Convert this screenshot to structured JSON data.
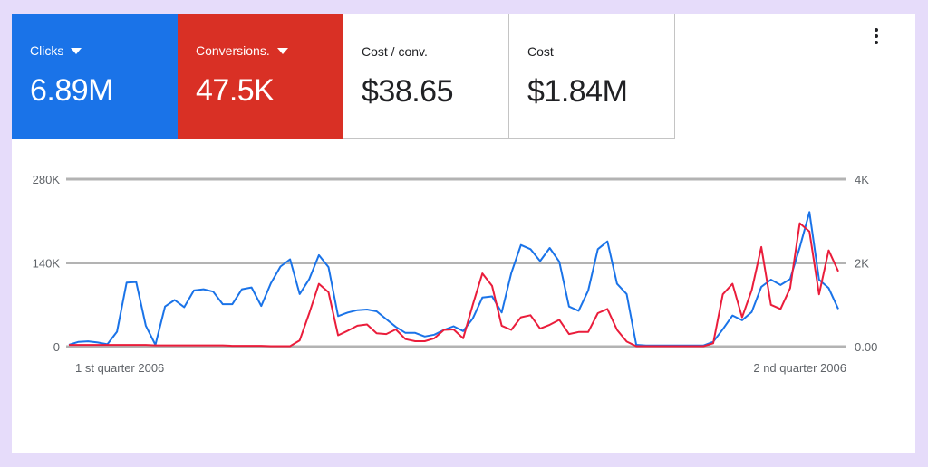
{
  "metrics": [
    {
      "label": "Clicks",
      "value": "6.89M",
      "dropdown": true,
      "color": "#1a73e8"
    },
    {
      "label": "Conversions.",
      "value": "47.5K",
      "dropdown": true,
      "color": "#d93025"
    },
    {
      "label": "Cost / conv.",
      "value": "$38.65",
      "dropdown": false
    },
    {
      "label": "Cost",
      "value": "$1.84M",
      "dropdown": false
    }
  ],
  "menu_icon": "more-vert-icon",
  "chart_data": {
    "type": "line",
    "x_labels": [
      "1 st quarter 2006",
      "2 nd quarter 2006"
    ],
    "y_left": {
      "ticks": [
        "280K",
        "140K",
        "0"
      ],
      "ylim": [
        0,
        280000
      ]
    },
    "y_right": {
      "ticks": [
        "4K",
        "2K",
        "0.00"
      ],
      "ylim": [
        0,
        4000
      ]
    },
    "grid": true,
    "series": [
      {
        "axis": "left",
        "color": "#1a73e8",
        "values": [
          3000,
          8000,
          9000,
          7000,
          4000,
          25000,
          107000,
          108000,
          35000,
          3000,
          67000,
          78000,
          66000,
          94000,
          96000,
          92000,
          71000,
          71000,
          96000,
          99000,
          68000,
          106000,
          134000,
          146000,
          88000,
          113000,
          153000,
          133000,
          51000,
          57000,
          61000,
          62000,
          59000,
          46000,
          33000,
          23000,
          23000,
          17000,
          20000,
          28000,
          34000,
          26000,
          47000,
          82000,
          84000,
          57000,
          123000,
          170000,
          163000,
          143000,
          165000,
          142000,
          67000,
          60000,
          94000,
          163000,
          176000,
          105000,
          88000,
          3000,
          2000,
          2000,
          2000,
          2000,
          2000,
          2000,
          2000,
          8000,
          29000,
          52000,
          44000,
          58000,
          100000,
          112000,
          103000,
          113000,
          166000,
          225000,
          112000,
          98000,
          63000
        ]
      },
      {
        "axis": "right",
        "color": "#ea1d3b",
        "values": [
          40,
          40,
          40,
          40,
          40,
          40,
          40,
          40,
          40,
          30,
          30,
          30,
          30,
          30,
          30,
          30,
          30,
          20,
          20,
          20,
          20,
          10,
          10,
          10,
          150,
          800,
          1500,
          1300,
          270,
          380,
          500,
          530,
          320,
          300,
          410,
          180,
          130,
          130,
          200,
          400,
          410,
          200,
          1000,
          1750,
          1450,
          500,
          400,
          700,
          750,
          430,
          520,
          640,
          300,
          350,
          350,
          800,
          900,
          400,
          120,
          10,
          10,
          10,
          10,
          10,
          10,
          10,
          10,
          80,
          1250,
          1500,
          700,
          1350,
          2380,
          1000,
          900,
          1400,
          2950,
          2750,
          1250,
          2300,
          1800
        ]
      }
    ]
  }
}
